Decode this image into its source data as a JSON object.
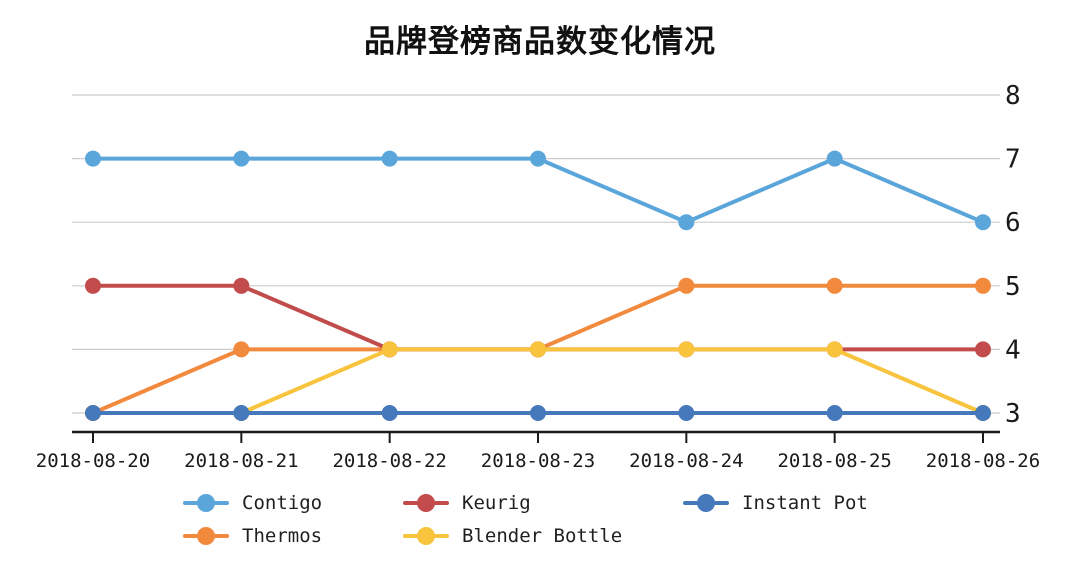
{
  "title": "品牌登榜商品数变化情况",
  "chart_data": {
    "type": "line",
    "title": "品牌登榜商品数变化情况",
    "x": [
      "2018-08-20",
      "2018-08-21",
      "2018-08-22",
      "2018-08-23",
      "2018-08-24",
      "2018-08-25",
      "2018-08-26"
    ],
    "series": [
      {
        "name": "Contigo",
        "color": "#5AA5DA",
        "values": [
          7,
          7,
          7,
          7,
          6,
          7,
          6
        ]
      },
      {
        "name": "Thermos",
        "color": "#F18A3D",
        "values": [
          3,
          4,
          4,
          4,
          5,
          5,
          5
        ]
      },
      {
        "name": "Keurig",
        "color": "#C24C4C",
        "values": [
          5,
          5,
          4,
          4,
          4,
          4,
          4
        ]
      },
      {
        "name": "Blender Bottle",
        "color": "#F8C33D",
        "values": [
          3,
          3,
          4,
          4,
          4,
          4,
          3
        ]
      },
      {
        "name": "Instant Pot",
        "color": "#4678BC",
        "values": [
          3,
          3,
          3,
          3,
          3,
          3,
          3
        ]
      }
    ],
    "xlabel": "",
    "ylabel": "",
    "ylim": [
      3,
      8
    ],
    "yticks": [
      3,
      4,
      5,
      6,
      7,
      8
    ],
    "y_axis_side": "right",
    "grid": true,
    "legend_position": "bottom",
    "legend_columns": [
      [
        "Contigo",
        "Thermos"
      ],
      [
        "Keurig",
        "Blender Bottle"
      ],
      [
        "Instant Pot"
      ]
    ],
    "colors": {
      "grid": "#CCCCCC",
      "axis": "#1A1A1A",
      "tick_label": "#1A1A1A",
      "background": "#FFFFFF"
    }
  }
}
